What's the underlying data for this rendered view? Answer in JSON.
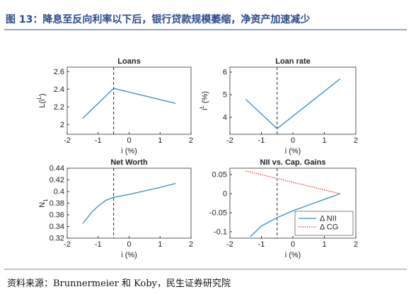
{
  "title": "图 13：降息至反向利率以下后，银行贷款规模萎缩，净资产加速减少",
  "source": "资料来源：Brunnermeier 和 Koby，民生证券研究院",
  "chart_data": [
    {
      "type": "line",
      "title": "Loans",
      "xlabel": "i (%)",
      "ylabel": {
        "text": "L(i",
        "sup": "L",
        "tail": ")"
      },
      "xlim": [
        -2,
        2
      ],
      "xticks": [
        -2,
        -1,
        0,
        1,
        2
      ],
      "ylim": [
        1.89,
        2.65
      ],
      "yticks": [
        2,
        2.2,
        2.4,
        2.6
      ],
      "vline": -0.5,
      "series": [
        {
          "color": "#2b8ccf",
          "x": [
            -1.5,
            -0.5,
            1.5
          ],
          "values": [
            2.07,
            2.41,
            2.24
          ]
        }
      ]
    },
    {
      "type": "line",
      "title": "Loan rate",
      "xlabel": "i (%)",
      "ylabel": {
        "text": "i",
        "sup": "L",
        "tail": " (%)"
      },
      "xlim": [
        -2,
        2
      ],
      "xticks": [
        -2,
        -1,
        0,
        1,
        2
      ],
      "ylim": [
        3.25,
        6.22
      ],
      "yticks": [
        4,
        5,
        6
      ],
      "vline": -0.5,
      "series": [
        {
          "color": "#2b8ccf",
          "x": [
            -1.5,
            -0.5,
            1.5
          ],
          "values": [
            4.8,
            3.5,
            5.7
          ]
        }
      ]
    },
    {
      "type": "line",
      "title": "Net Worth",
      "xlabel": "i (%)",
      "ylabel": {
        "text": "N",
        "sub": "1"
      },
      "xlim": [
        -2,
        2
      ],
      "xticks": [
        -2,
        -1,
        0,
        1,
        2
      ],
      "ylim": [
        0.32,
        0.44
      ],
      "yticks": [
        0.32,
        0.34,
        0.36,
        0.38,
        0.4,
        0.42,
        0.44
      ],
      "vline": -0.5,
      "series": [
        {
          "color": "#2b8ccf",
          "x": [
            -1.5,
            -1.2,
            -1,
            -0.75,
            -0.5,
            0,
            0.5,
            1,
            1.5
          ],
          "values": [
            0.345,
            0.365,
            0.375,
            0.385,
            0.39,
            0.395,
            0.401,
            0.407,
            0.414
          ]
        }
      ]
    },
    {
      "type": "line",
      "title": "NII vs. Cap. Gains",
      "xlabel": "i (%)",
      "xlim": [
        -2,
        2
      ],
      "xticks": [
        -2,
        -1,
        0,
        1,
        2
      ],
      "ylim": [
        -0.117,
        0.067
      ],
      "yticks": [
        0.05,
        0,
        -0.05,
        -0.1
      ],
      "vline": -0.5,
      "legend": "lower right",
      "series": [
        {
          "name": "Δ NII",
          "color": "#2b8ccf",
          "dash": false,
          "x": [
            -1.35,
            -1,
            -0.5,
            0,
            0.5,
            1,
            1.5
          ],
          "values": [
            -0.113,
            -0.085,
            -0.063,
            -0.045,
            -0.03,
            -0.015,
            0
          ]
        },
        {
          "name": "Δ CG",
          "color": "#e0403a",
          "dash": true,
          "x": [
            -1.5,
            1.5
          ],
          "values": [
            0.06,
            0
          ]
        }
      ]
    }
  ]
}
